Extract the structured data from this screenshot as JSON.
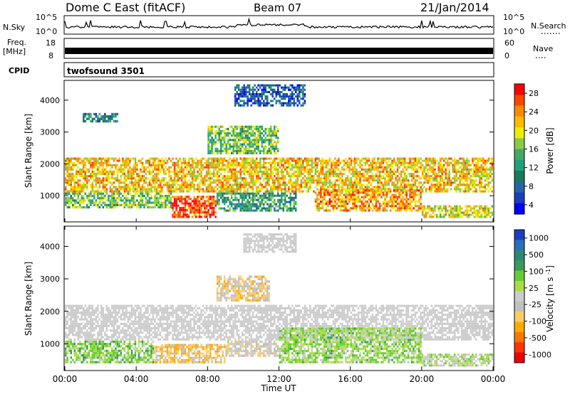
{
  "header": {
    "station": "Dome C East (fitACF)",
    "beam": "Beam 07",
    "date": "21/Jan/2014"
  },
  "noise_panel": {
    "left_label": "N.Sky",
    "right_label": "N.Search",
    "left_ticks": [
      "10^5",
      "10^0"
    ],
    "right_ticks": [
      "10^5",
      "10^0"
    ]
  },
  "freq_panel": {
    "left_label_line1": "Freq.",
    "left_label_line2": "[MHz]",
    "left_ticks": [
      "18",
      "8"
    ],
    "right_label": "Nave",
    "right_ticks": [
      "60",
      "0"
    ]
  },
  "cpid_panel": {
    "label": "CPID",
    "program": "twofsound 3501"
  },
  "x_axis": {
    "label": "Time UT",
    "ticks": [
      "00:00",
      "04:00",
      "08:00",
      "12:00",
      "16:00",
      "20:00",
      "00:00"
    ]
  },
  "chart_data": [
    {
      "type": "heatmap",
      "title": "Power",
      "xlabel": "Time UT",
      "ylabel": "Slant Range [km]",
      "xlim": [
        0,
        24
      ],
      "ylim": [
        200,
        4600
      ],
      "y_ticks": [
        1000,
        2000,
        3000,
        4000
      ],
      "colorbar": {
        "label": "Power [dB]",
        "ticks": [
          "28",
          "24",
          "20",
          "16",
          "12",
          "8",
          "4"
        ],
        "colors": [
          "#ff0000",
          "#ff4400",
          "#ff8800",
          "#ffbb00",
          "#eeee00",
          "#88cc44",
          "#44aa66",
          "#22a07a",
          "#1c7a5a",
          "#2266aa",
          "#1a3ec0",
          "#0000ff"
        ]
      },
      "regions": [
        {
          "t0": 0.0,
          "t1": 24.0,
          "r0": 1100,
          "r1": 2200,
          "value": 22
        },
        {
          "t0": 0.0,
          "t1": 6.0,
          "r0": 600,
          "r1": 1100,
          "value": 16
        },
        {
          "t0": 6.0,
          "t1": 8.5,
          "r0": 300,
          "r1": 1000,
          "value": 28
        },
        {
          "t0": 8.5,
          "t1": 13.0,
          "r0": 500,
          "r1": 1100,
          "value": 12
        },
        {
          "t0": 14.0,
          "t1": 20.0,
          "r0": 500,
          "r1": 1200,
          "value": 24
        },
        {
          "t0": 20.0,
          "t1": 24.0,
          "r0": 300,
          "r1": 700,
          "value": 20
        },
        {
          "t0": 8.0,
          "t1": 12.0,
          "r0": 2300,
          "r1": 3200,
          "value": 16
        },
        {
          "t0": 1.0,
          "t1": 3.0,
          "r0": 3300,
          "r1": 3600,
          "value": 10
        },
        {
          "t0": 9.5,
          "t1": 13.5,
          "r0": 3800,
          "r1": 4500,
          "value": 6
        }
      ]
    },
    {
      "type": "heatmap",
      "title": "Velocity",
      "xlabel": "Time UT",
      "ylabel": "Slant Range [km]",
      "xlim": [
        0,
        24
      ],
      "ylim": [
        200,
        4600
      ],
      "y_ticks": [
        1000,
        2000,
        3000,
        4000
      ],
      "colorbar": {
        "label": "Velocity [m s^-1]",
        "ticks": [
          "1000",
          "500",
          "100",
          "25",
          "-25",
          "-100",
          "-500",
          "-1000"
        ],
        "colors": [
          "#1a3ec0",
          "#2a6ec0",
          "#2a8a78",
          "#3a9a5a",
          "#66cc33",
          "#aadd44",
          "#cccccc",
          "#c0c0c0",
          "#ffcc66",
          "#ffaa00",
          "#ff7700",
          "#ff3300",
          "#ee0000"
        ]
      },
      "regions": [
        {
          "t0": 0.0,
          "t1": 24.0,
          "r0": 1100,
          "r1": 2200,
          "value": 0
        },
        {
          "t0": 0.0,
          "t1": 5.0,
          "r0": 400,
          "r1": 1100,
          "value": 300
        },
        {
          "t0": 5.0,
          "t1": 9.0,
          "r0": 400,
          "r1": 1000,
          "value": -400
        },
        {
          "t0": 9.0,
          "t1": 12.0,
          "r0": 600,
          "r1": 1100,
          "value": -150
        },
        {
          "t0": 12.0,
          "t1": 20.0,
          "r0": 400,
          "r1": 1500,
          "value": 250
        },
        {
          "t0": 20.0,
          "t1": 24.0,
          "r0": 300,
          "r1": 700,
          "value": 100
        },
        {
          "t0": 8.5,
          "t1": 11.5,
          "r0": 2300,
          "r1": 3100,
          "value": -300
        },
        {
          "t0": 10.0,
          "t1": 13.0,
          "r0": 3800,
          "r1": 4400,
          "value": 0
        }
      ]
    }
  ]
}
